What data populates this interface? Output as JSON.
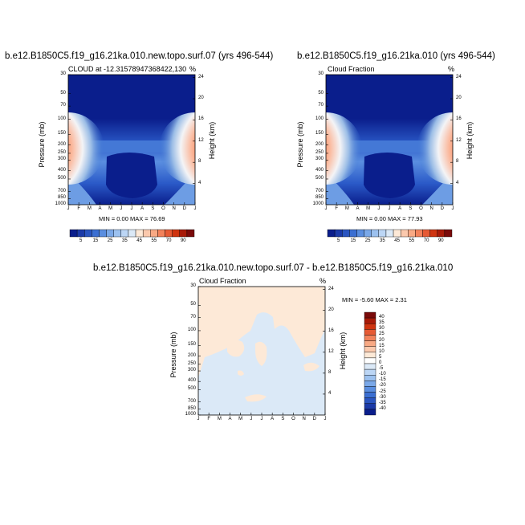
{
  "chart_data": [
    {
      "type": "heatmap",
      "title": "b.e12.B1850C5.f19_g16.21ka.010.new.topo.surf.07 (yrs 496-544)",
      "subtitle_left": "CLOUD at -12.31578947368422,130",
      "subtitle_right": "%",
      "ylabel": "Pressure (mb)",
      "ylabel_right": "Height (km)",
      "x_ticks": [
        "J",
        "F",
        "M",
        "A",
        "M",
        "J",
        "J",
        "A",
        "S",
        "O",
        "N",
        "D",
        "J"
      ],
      "y_ticks": [
        "30",
        "50",
        "70",
        "100",
        "150",
        "200",
        "250",
        "300",
        "400",
        "500",
        "700",
        "850",
        "1000"
      ],
      "y_ticks_right": [
        "24",
        "20",
        "16",
        "12",
        "8",
        "4"
      ],
      "min_max": "MIN =   0.00 MAX =  76.69",
      "colorbar_labels": [
        "5",
        "15",
        "25",
        "35",
        "45",
        "55",
        "70",
        "90"
      ]
    },
    {
      "type": "heatmap",
      "title": "b.e12.B1850C5.f19_g16.21ka.010 (yrs 496-544)",
      "subtitle_left": "Cloud Fraction",
      "subtitle_right": "%",
      "ylabel": "Pressure (mb)",
      "ylabel_right": "Height (km)",
      "x_ticks": [
        "J",
        "F",
        "M",
        "A",
        "M",
        "J",
        "J",
        "A",
        "S",
        "O",
        "N",
        "D",
        "J"
      ],
      "y_ticks": [
        "30",
        "50",
        "70",
        "100",
        "150",
        "200",
        "250",
        "300",
        "400",
        "500",
        "700",
        "850",
        "1000"
      ],
      "y_ticks_right": [
        "24",
        "20",
        "16",
        "12",
        "8",
        "4"
      ],
      "min_max": "MIN =   0.00 MAX =  77.93",
      "colorbar_labels": [
        "5",
        "15",
        "25",
        "35",
        "45",
        "55",
        "70",
        "90"
      ]
    },
    {
      "type": "heatmap",
      "title": "b.e12.B1850C5.f19_g16.21ka.010.new.topo.surf.07 - b.e12.B1850C5.f19_g16.21ka.010",
      "subtitle_left": "Cloud Fraction",
      "subtitle_right": "%",
      "ylabel": "Pressure (mb)",
      "ylabel_right": "Height (km)",
      "x_ticks": [
        "J",
        "F",
        "M",
        "A",
        "M",
        "J",
        "J",
        "A",
        "S",
        "O",
        "N",
        "D",
        "J"
      ],
      "y_ticks": [
        "30",
        "50",
        "70",
        "100",
        "150",
        "200",
        "250",
        "300",
        "400",
        "500",
        "700",
        "850",
        "1000"
      ],
      "y_ticks_right": [
        "24",
        "20",
        "16",
        "12",
        "8",
        "4"
      ],
      "min_max": "MIN =  -5.60 MAX =   2.31",
      "colorbar_labels": [
        "40",
        "35",
        "30",
        "25",
        "20",
        "15",
        "10",
        "5",
        "0",
        "-5",
        "-10",
        "-15",
        "-20",
        "-25",
        "-30",
        "-35",
        "-40"
      ]
    }
  ],
  "colors": {
    "dark_blue": "#0a1e8c",
    "pale_orange": "#fde9d7",
    "pale_blue": "#dbe9f7",
    "dark_red": "#8c0a0a"
  }
}
